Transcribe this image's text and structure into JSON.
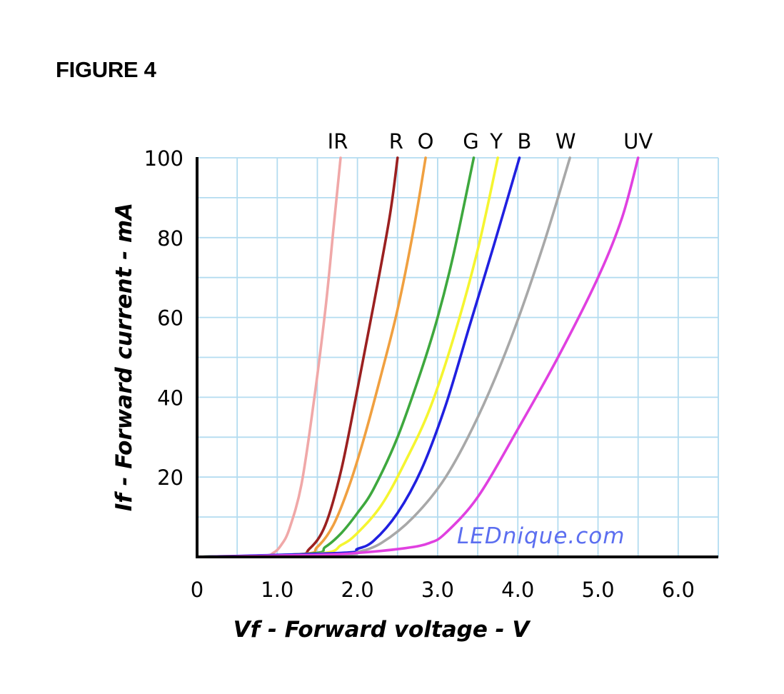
{
  "figure_label": "FIGURE 4",
  "watermark": "LEDnique.com",
  "colors": {
    "grid": "#b3dcf0",
    "axis": "#000000"
  },
  "chart_data": {
    "type": "line",
    "xlabel": "Vf - Forward voltage - V",
    "ylabel": "If - Forward current - mA",
    "xlim": [
      0,
      6.5
    ],
    "ylim": [
      0,
      100
    ],
    "x_ticks": [
      {
        "value": 0,
        "label": "0"
      },
      {
        "value": 1,
        "label": "1.0"
      },
      {
        "value": 2,
        "label": "2.0"
      },
      {
        "value": 3,
        "label": "3.0"
      },
      {
        "value": 4,
        "label": "4.0"
      },
      {
        "value": 5,
        "label": "5.0"
      },
      {
        "value": 6,
        "label": "6.0"
      }
    ],
    "y_ticks": [
      {
        "value": 20,
        "label": "20"
      },
      {
        "value": 40,
        "label": "40"
      },
      {
        "value": 60,
        "label": "60"
      },
      {
        "value": 80,
        "label": "80"
      },
      {
        "value": 100,
        "label": "100"
      }
    ],
    "grid": true,
    "grid_x_step": 0.5,
    "grid_y_step": 10,
    "series": [
      {
        "name": "IR",
        "color": "#f0a8a8",
        "points": [
          [
            0,
            0
          ],
          [
            0.8,
            0.3
          ],
          [
            0.95,
            1
          ],
          [
            1.05,
            3
          ],
          [
            1.15,
            7
          ],
          [
            1.3,
            18
          ],
          [
            1.45,
            38
          ],
          [
            1.6,
            62
          ],
          [
            1.7,
            82
          ],
          [
            1.79,
            100
          ]
        ]
      },
      {
        "name": "R",
        "color": "#9b2020",
        "points": [
          [
            0,
            0
          ],
          [
            1.2,
            0.5
          ],
          [
            1.4,
            2
          ],
          [
            1.6,
            8
          ],
          [
            1.8,
            22
          ],
          [
            2.0,
            42
          ],
          [
            2.2,
            63
          ],
          [
            2.4,
            85
          ],
          [
            2.5,
            100
          ]
        ]
      },
      {
        "name": "O",
        "color": "#f0a040",
        "points": [
          [
            0,
            0
          ],
          [
            1.3,
            0.7
          ],
          [
            1.5,
            2.5
          ],
          [
            1.7,
            8
          ],
          [
            1.9,
            18
          ],
          [
            2.1,
            31
          ],
          [
            2.3,
            46
          ],
          [
            2.5,
            62
          ],
          [
            2.7,
            82
          ],
          [
            2.85,
            100
          ]
        ]
      },
      {
        "name": "G",
        "color": "#3ea83e",
        "points": [
          [
            0,
            0
          ],
          [
            1.4,
            0.8
          ],
          [
            1.6,
            2.5
          ],
          [
            1.8,
            6
          ],
          [
            2.0,
            11
          ],
          [
            2.2,
            17
          ],
          [
            2.5,
            30
          ],
          [
            2.8,
            47
          ],
          [
            3.0,
            60
          ],
          [
            3.2,
            76
          ],
          [
            3.45,
            100
          ]
        ]
      },
      {
        "name": "Y",
        "color": "#f5f530",
        "points": [
          [
            0,
            0
          ],
          [
            1.5,
            0.8
          ],
          [
            1.8,
            3
          ],
          [
            2.0,
            6
          ],
          [
            2.3,
            13
          ],
          [
            2.6,
            24
          ],
          [
            2.9,
            37
          ],
          [
            3.2,
            55
          ],
          [
            3.5,
            77
          ],
          [
            3.75,
            100
          ]
        ]
      },
      {
        "name": "B",
        "color": "#2020e0",
        "points": [
          [
            0,
            0
          ],
          [
            1.8,
            1
          ],
          [
            2.0,
            2
          ],
          [
            2.2,
            4
          ],
          [
            2.5,
            11
          ],
          [
            2.8,
            22
          ],
          [
            3.1,
            38
          ],
          [
            3.4,
            58
          ],
          [
            3.7,
            78
          ],
          [
            4.02,
            100
          ]
        ]
      },
      {
        "name": "W",
        "color": "#a8a8a8",
        "points": [
          [
            0,
            0
          ],
          [
            1.8,
            0.6
          ],
          [
            2.0,
            1.2
          ],
          [
            2.3,
            3.5
          ],
          [
            2.7,
            10
          ],
          [
            3.1,
            20
          ],
          [
            3.5,
            35
          ],
          [
            3.9,
            54
          ],
          [
            4.3,
            77
          ],
          [
            4.65,
            100
          ]
        ]
      },
      {
        "name": "UV",
        "color": "#e040e0",
        "points": [
          [
            0,
            0
          ],
          [
            1.5,
            0.5
          ],
          [
            2.0,
            1
          ],
          [
            2.6,
            2.2
          ],
          [
            2.9,
            3.5
          ],
          [
            3.1,
            6
          ],
          [
            3.5,
            15
          ],
          [
            4.0,
            32
          ],
          [
            4.5,
            50
          ],
          [
            5.0,
            70
          ],
          [
            5.3,
            85
          ],
          [
            5.5,
            100
          ]
        ]
      }
    ]
  }
}
